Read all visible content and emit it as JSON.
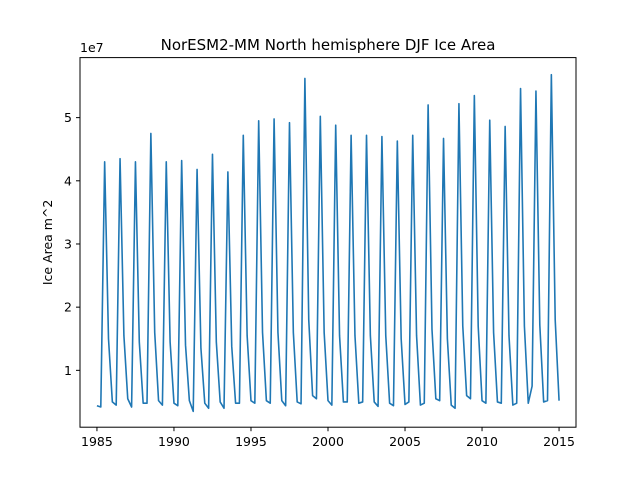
{
  "chart_data": {
    "type": "line",
    "title": "NorESM2-MM North hemisphere DJF Ice Area",
    "xlabel": "",
    "ylabel": "Ice Area m^2",
    "offset_text": "1e7",
    "xlim": [
      1983.9,
      2016.1
    ],
    "ylim": [
      0.1,
      5.95
    ],
    "x_ticks": [
      1985,
      1990,
      1995,
      2000,
      2005,
      2010,
      2015
    ],
    "y_ticks": [
      1,
      2,
      3,
      4,
      5
    ],
    "y_scale_note": "values in units of 1e7",
    "grid": false,
    "line_color": "#1f77b4",
    "series": [
      {
        "x": [
          1985.0,
          1985.25,
          1985.5,
          1985.75,
          1986.0,
          1986.25,
          1986.5,
          1986.75,
          1987.0,
          1987.25,
          1987.5,
          1987.75,
          1988.0,
          1988.25,
          1988.5,
          1988.75,
          1989.0,
          1989.25,
          1989.5,
          1989.75,
          1990.0,
          1990.25,
          1990.5,
          1990.75,
          1991.0,
          1991.25,
          1991.5,
          1991.75,
          1992.0,
          1992.25,
          1992.5,
          1992.75,
          1993.0,
          1993.25,
          1993.5,
          1993.75,
          1994.0,
          1994.25,
          1994.5,
          1994.75,
          1995.0,
          1995.25,
          1995.5,
          1995.75,
          1996.0,
          1996.25,
          1996.5,
          1996.75,
          1997.0,
          1997.25,
          1997.5,
          1997.75,
          1998.0,
          1998.25,
          1998.5,
          1998.75,
          1999.0,
          1999.25,
          1999.5,
          1999.75,
          2000.0,
          2000.25,
          2000.5,
          2000.75,
          2001.0,
          2001.25,
          2001.5,
          2001.75,
          2002.0,
          2002.25,
          2002.5,
          2002.75,
          2003.0,
          2003.25,
          2003.5,
          2003.75,
          2004.0,
          2004.25,
          2004.5,
          2004.75,
          2005.0,
          2005.25,
          2005.5,
          2005.75,
          2006.0,
          2006.25,
          2006.5,
          2006.75,
          2007.0,
          2007.25,
          2007.5,
          2007.75,
          2008.0,
          2008.25,
          2008.5,
          2008.75,
          2009.0,
          2009.25,
          2009.5,
          2009.75,
          2010.0,
          2010.25,
          2010.5,
          2010.75,
          2011.0,
          2011.25,
          2011.5,
          2011.75,
          2012.0,
          2012.25,
          2012.5,
          2012.75,
          2013.0,
          2013.25,
          2013.5,
          2013.75,
          2014.0,
          2014.25,
          2014.5,
          2014.75,
          2015.0
        ],
        "y": [
          0.44,
          0.42,
          4.3,
          1.5,
          0.5,
          0.45,
          4.35,
          1.55,
          0.55,
          0.42,
          4.3,
          1.45,
          0.48,
          0.48,
          4.75,
          1.6,
          0.52,
          0.45,
          4.3,
          1.45,
          0.48,
          0.44,
          4.32,
          1.4,
          0.52,
          0.35,
          4.18,
          1.35,
          0.48,
          0.4,
          4.42,
          1.45,
          0.5,
          0.4,
          4.14,
          1.38,
          0.48,
          0.48,
          4.72,
          1.55,
          0.52,
          0.48,
          4.95,
          1.6,
          0.52,
          0.48,
          4.98,
          1.6,
          0.52,
          0.44,
          4.92,
          1.6,
          0.5,
          0.47,
          5.62,
          1.8,
          0.6,
          0.55,
          5.02,
          1.6,
          0.52,
          0.45,
          4.88,
          1.55,
          0.5,
          0.5,
          4.72,
          1.55,
          0.48,
          0.5,
          4.72,
          1.55,
          0.5,
          0.43,
          4.7,
          1.55,
          0.48,
          0.44,
          4.63,
          1.5,
          0.46,
          0.5,
          4.72,
          1.55,
          0.45,
          0.48,
          5.2,
          1.65,
          0.55,
          0.52,
          4.67,
          1.5,
          0.45,
          0.4,
          5.22,
          1.7,
          0.6,
          0.55,
          5.35,
          1.7,
          0.52,
          0.48,
          4.96,
          1.6,
          0.5,
          0.48,
          4.86,
          1.55,
          0.45,
          0.48,
          5.46,
          1.7,
          0.48,
          0.75,
          5.42,
          1.72,
          0.5,
          0.52,
          5.68,
          1.8,
          0.52
        ]
      }
    ]
  }
}
